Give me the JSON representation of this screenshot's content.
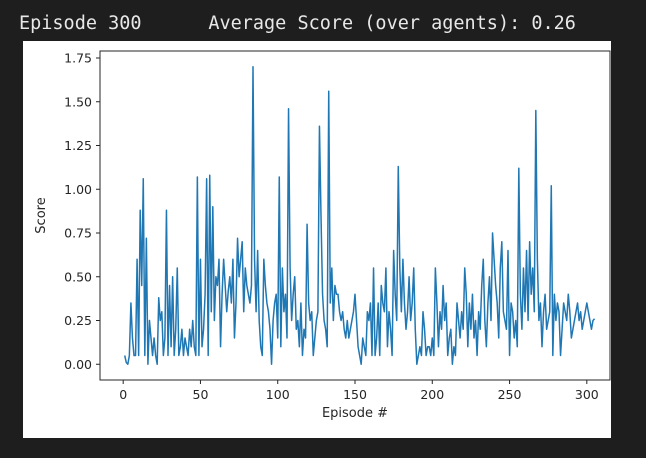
{
  "console": {
    "episode_text": "Episode 300",
    "average_text": "Average Score (over agents): 0.26"
  },
  "colors": {
    "background": "#1e1e1e",
    "figure_bg": "#ffffff",
    "line": "#1f77b4",
    "axis": "#262626"
  },
  "chart_data": {
    "type": "line",
    "title": "",
    "xlabel": "Episode #",
    "ylabel": "Score",
    "xlim": [
      -15,
      315
    ],
    "ylim": [
      -0.09,
      1.79
    ],
    "xticks": [
      0,
      50,
      100,
      150,
      200,
      250,
      300
    ],
    "yticks": [
      0.0,
      0.25,
      0.5,
      0.75,
      1.0,
      1.25,
      1.5,
      1.75
    ],
    "ytick_labels": [
      "0.00",
      "0.25",
      "0.50",
      "0.75",
      "1.00",
      "1.25",
      "1.50",
      "1.75"
    ],
    "grid": false,
    "series": [
      {
        "name": "",
        "x_start": 1,
        "values": [
          0.05,
          0.01,
          0.0,
          0.05,
          0.35,
          0.15,
          0.05,
          0.05,
          0.6,
          0.05,
          0.88,
          0.45,
          1.06,
          0.05,
          0.72,
          0.0,
          0.25,
          0.15,
          0.05,
          0.15,
          0.05,
          0.0,
          0.38,
          0.25,
          0.3,
          0.05,
          0.15,
          0.88,
          0.05,
          0.45,
          0.1,
          0.5,
          0.05,
          0.2,
          0.55,
          0.05,
          0.1,
          0.2,
          0.05,
          0.15,
          0.1,
          0.05,
          0.2,
          0.1,
          0.25,
          0.1,
          0.05,
          1.07,
          0.05,
          0.6,
          0.1,
          0.2,
          0.4,
          1.06,
          0.05,
          1.08,
          0.3,
          0.9,
          0.25,
          0.5,
          0.45,
          0.6,
          0.1,
          0.4,
          0.6,
          0.45,
          0.3,
          0.42,
          0.5,
          0.35,
          0.6,
          0.15,
          0.35,
          0.72,
          0.5,
          0.6,
          0.7,
          0.3,
          0.55,
          0.45,
          0.4,
          0.35,
          0.45,
          1.7,
          0.6,
          0.3,
          0.65,
          0.25,
          0.1,
          0.05,
          0.6,
          0.45,
          0.35,
          0.3,
          0.2,
          0.0,
          0.25,
          0.35,
          0.4,
          0.15,
          1.07,
          0.1,
          0.55,
          0.3,
          0.4,
          0.15,
          1.46,
          0.55,
          0.25,
          0.4,
          0.5,
          0.2,
          0.25,
          0.1,
          0.35,
          0.05,
          0.2,
          0.15,
          0.8,
          0.35,
          0.25,
          0.3,
          0.05,
          0.15,
          0.25,
          0.3,
          1.36,
          0.85,
          0.4,
          0.25,
          0.2,
          0.1,
          1.56,
          0.35,
          0.55,
          0.25,
          0.45,
          0.4,
          0.4,
          0.3,
          0.25,
          0.3,
          0.2,
          0.15,
          0.25,
          0.15,
          0.2,
          0.25,
          0.3,
          0.4,
          0.25,
          0.1,
          0.05,
          0.0,
          0.15,
          0.1,
          0.05,
          0.3,
          0.25,
          0.35,
          0.05,
          0.55,
          0.05,
          0.15,
          0.35,
          0.05,
          0.45,
          0.35,
          0.3,
          0.55,
          0.1,
          0.3,
          0.2,
          0.05,
          0.65,
          0.4,
          0.25,
          1.13,
          0.55,
          0.3,
          0.6,
          0.35,
          0.2,
          0.3,
          0.5,
          0.25,
          0.35,
          0.55,
          0.2,
          0.0,
          0.05,
          0.1,
          0.05,
          0.3,
          0.2,
          0.05,
          0.1,
          0.1,
          0.05,
          0.15,
          0.05,
          0.55,
          0.35,
          0.1,
          0.3,
          0.2,
          0.45,
          0.25,
          0.35,
          0.05,
          0.15,
          0.2,
          0.0,
          0.1,
          0.05,
          0.35,
          0.25,
          0.15,
          0.3,
          0.2,
          0.55,
          0.4,
          0.1,
          0.35,
          0.2,
          0.4,
          0.15,
          0.25,
          0.05,
          0.3,
          0.2,
          0.45,
          0.6,
          0.25,
          0.1,
          0.35,
          0.5,
          0.25,
          0.75,
          0.6,
          0.45,
          0.35,
          0.15,
          0.55,
          0.7,
          0.3,
          0.25,
          0.2,
          0.65,
          0.05,
          0.35,
          0.3,
          0.15,
          0.25,
          0.1,
          1.12,
          0.4,
          0.2,
          0.55,
          0.3,
          0.65,
          0.25,
          0.7,
          0.4,
          0.55,
          0.3,
          1.45,
          0.6,
          0.25,
          0.35,
          0.1,
          0.3,
          0.4,
          0.2,
          0.25,
          0.3,
          1.02,
          0.05,
          0.4,
          0.25,
          0.35,
          0.3,
          0.05,
          0.2,
          0.35,
          0.3,
          0.25,
          0.4,
          0.3,
          0.15,
          0.2,
          0.25,
          0.3,
          0.35,
          0.25,
          0.3,
          0.2,
          0.25,
          0.3,
          0.35,
          0.3,
          0.25,
          0.2,
          0.25,
          0.26
        ]
      }
    ]
  }
}
